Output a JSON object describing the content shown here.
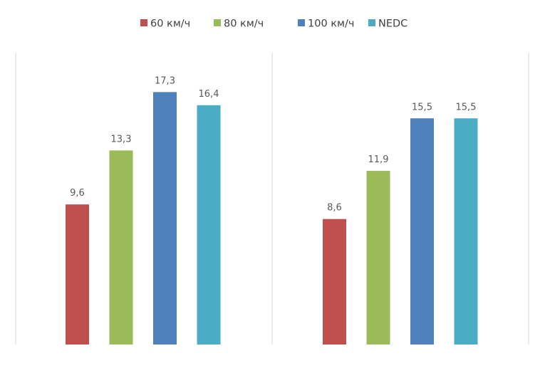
{
  "chart_data": {
    "type": "bar",
    "categories": [
      "",
      ""
    ],
    "series": [
      {
        "name": "60 км/ч",
        "color": "#C0504D",
        "values": [
          9.6,
          8.6
        ],
        "labels": [
          "9,6",
          "8,6"
        ]
      },
      {
        "name": "80 км/ч",
        "color": "#9BBB59",
        "values": [
          13.3,
          11.9
        ],
        "labels": [
          "13,3",
          "11,9"
        ]
      },
      {
        "name": "100 км/ч",
        "color": "#4F81BD",
        "values": [
          17.3,
          15.5
        ],
        "labels": [
          "17,3",
          "15,5"
        ]
      },
      {
        "name": "NEDC",
        "color": "#4BACC6",
        "values": [
          16.4,
          15.5
        ],
        "labels": [
          "16,4",
          "15,5"
        ]
      }
    ],
    "ylim": [
      0,
      20
    ],
    "grid": false,
    "legend": "top",
    "data_labels": true
  }
}
